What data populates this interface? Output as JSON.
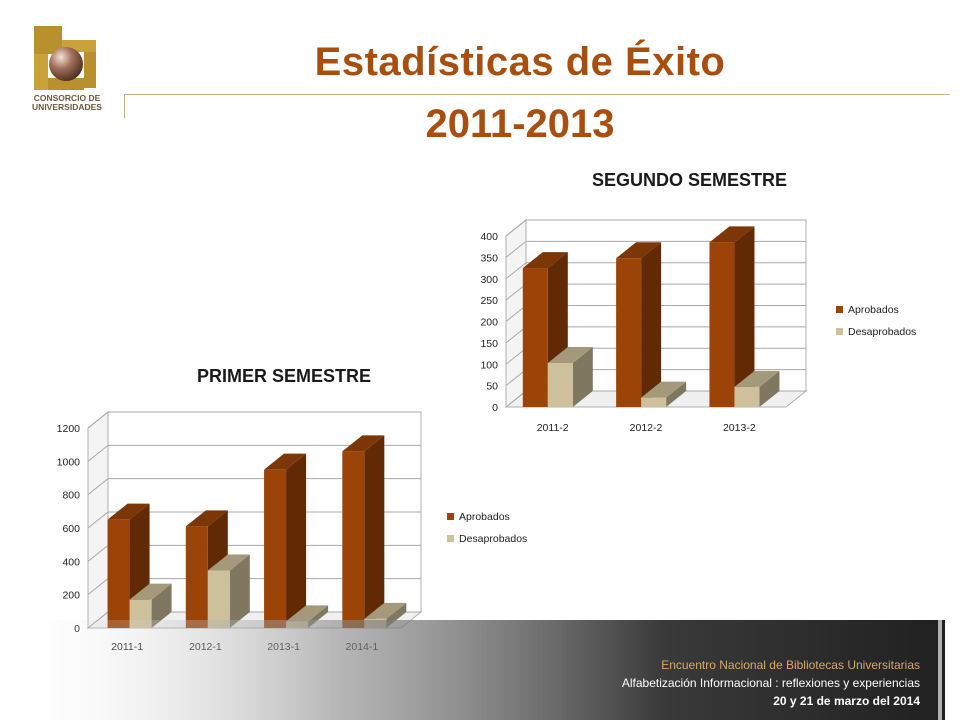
{
  "header": {
    "title": "Estadísticas  de Éxito",
    "subtitle": "2011-2013",
    "logo_line1": "CONSORCIO DE",
    "logo_line2": "UNIVERSIDADES"
  },
  "colors": {
    "title": "#a84f10",
    "aprobados": "#9c4308",
    "desaprobados": "#cdc09a",
    "footer_bg": "#2f2f2f"
  },
  "chart_data": [
    {
      "type": "bar",
      "title": "SEGUNDO SEMESTRE",
      "categories": [
        "2011-2",
        "2012-2",
        "2013-2"
      ],
      "series": [
        {
          "name": "Aprobados",
          "values": [
            325,
            348,
            385
          ]
        },
        {
          "name": "Desaprobados",
          "values": [
            103,
            22,
            47
          ]
        }
      ],
      "ylim": [
        0,
        400
      ],
      "yticks": [
        "0",
        "50",
        "100",
        "150",
        "200",
        "250",
        "300",
        "350",
        "400"
      ],
      "grid": true,
      "legend": "right"
    },
    {
      "type": "bar",
      "title": "PRIMER SEMESTRE",
      "categories": [
        "2011-1",
        "2012-1",
        "2013-1",
        "2014-1"
      ],
      "series": [
        {
          "name": "Aprobados",
          "values": [
            650,
            610,
            950,
            1060
          ]
        },
        {
          "name": "Desaprobados",
          "values": [
            170,
            345,
            40,
            55
          ]
        }
      ],
      "ylim": [
        0,
        1200
      ],
      "yticks": [
        "0",
        "200",
        "400",
        "600",
        "800",
        "1000",
        "1200"
      ],
      "grid": true,
      "legend": "right"
    }
  ],
  "footer": {
    "line1": "Encuentro Nacional de Bibliotecas Universitarias",
    "line2": "Alfabetización Informacional : reflexiones y experiencias",
    "line3": "20 y 21  de marzo del 2014"
  }
}
